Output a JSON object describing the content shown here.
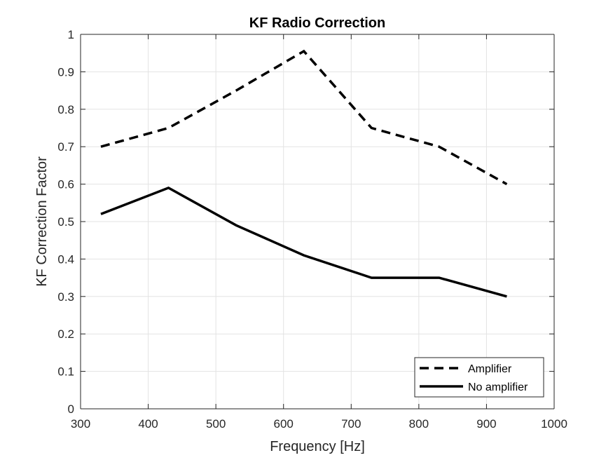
{
  "chart_data": {
    "type": "line",
    "title": "KF Radio Correction",
    "xlabel": "Frequency [Hz]",
    "ylabel": "KF Correction Factor",
    "xlim": [
      300,
      1000
    ],
    "ylim": [
      0,
      1
    ],
    "x_ticks": [
      300,
      400,
      500,
      600,
      700,
      800,
      900,
      1000
    ],
    "y_ticks": [
      0,
      0.1,
      0.2,
      0.3,
      0.4,
      0.5,
      0.6,
      0.7,
      0.8,
      0.9,
      1
    ],
    "x_tick_labels": [
      "300",
      "400",
      "500",
      "600",
      "700",
      "800",
      "900",
      "1000"
    ],
    "y_tick_labels": [
      "0",
      "0.1",
      "0.2",
      "0.3",
      "0.4",
      "0.5",
      "0.6",
      "0.7",
      "0.8",
      "0.9",
      "1"
    ],
    "grid": true,
    "legend_position": "bottom-right",
    "series": [
      {
        "name": "Amplifier",
        "line_style": "dashed",
        "color": "#000000",
        "x": [
          330,
          430,
          530,
          630,
          730,
          830,
          930
        ],
        "values": [
          0.7,
          0.75,
          0.85,
          0.955,
          0.75,
          0.7,
          0.6
        ]
      },
      {
        "name": "No amplifier",
        "line_style": "solid",
        "color": "#000000",
        "x": [
          330,
          430,
          530,
          630,
          730,
          830,
          930
        ],
        "values": [
          0.52,
          0.59,
          0.49,
          0.41,
          0.35,
          0.35,
          0.3
        ]
      }
    ]
  }
}
